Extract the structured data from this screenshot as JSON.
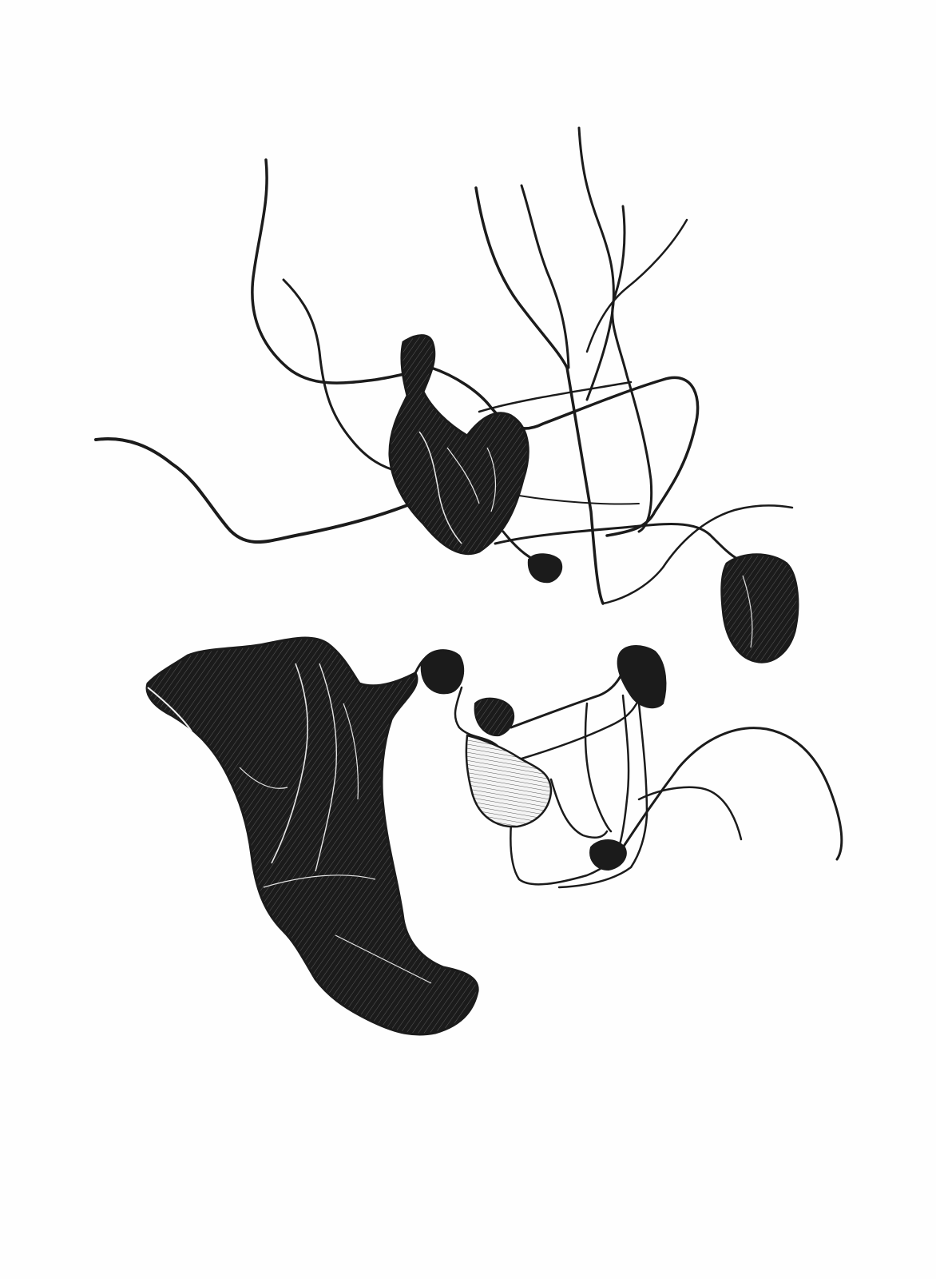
{
  "artwork": {
    "ink": "#1b1b1b",
    "paper": "#fefefe",
    "hatch": "#f2f2f2"
  }
}
